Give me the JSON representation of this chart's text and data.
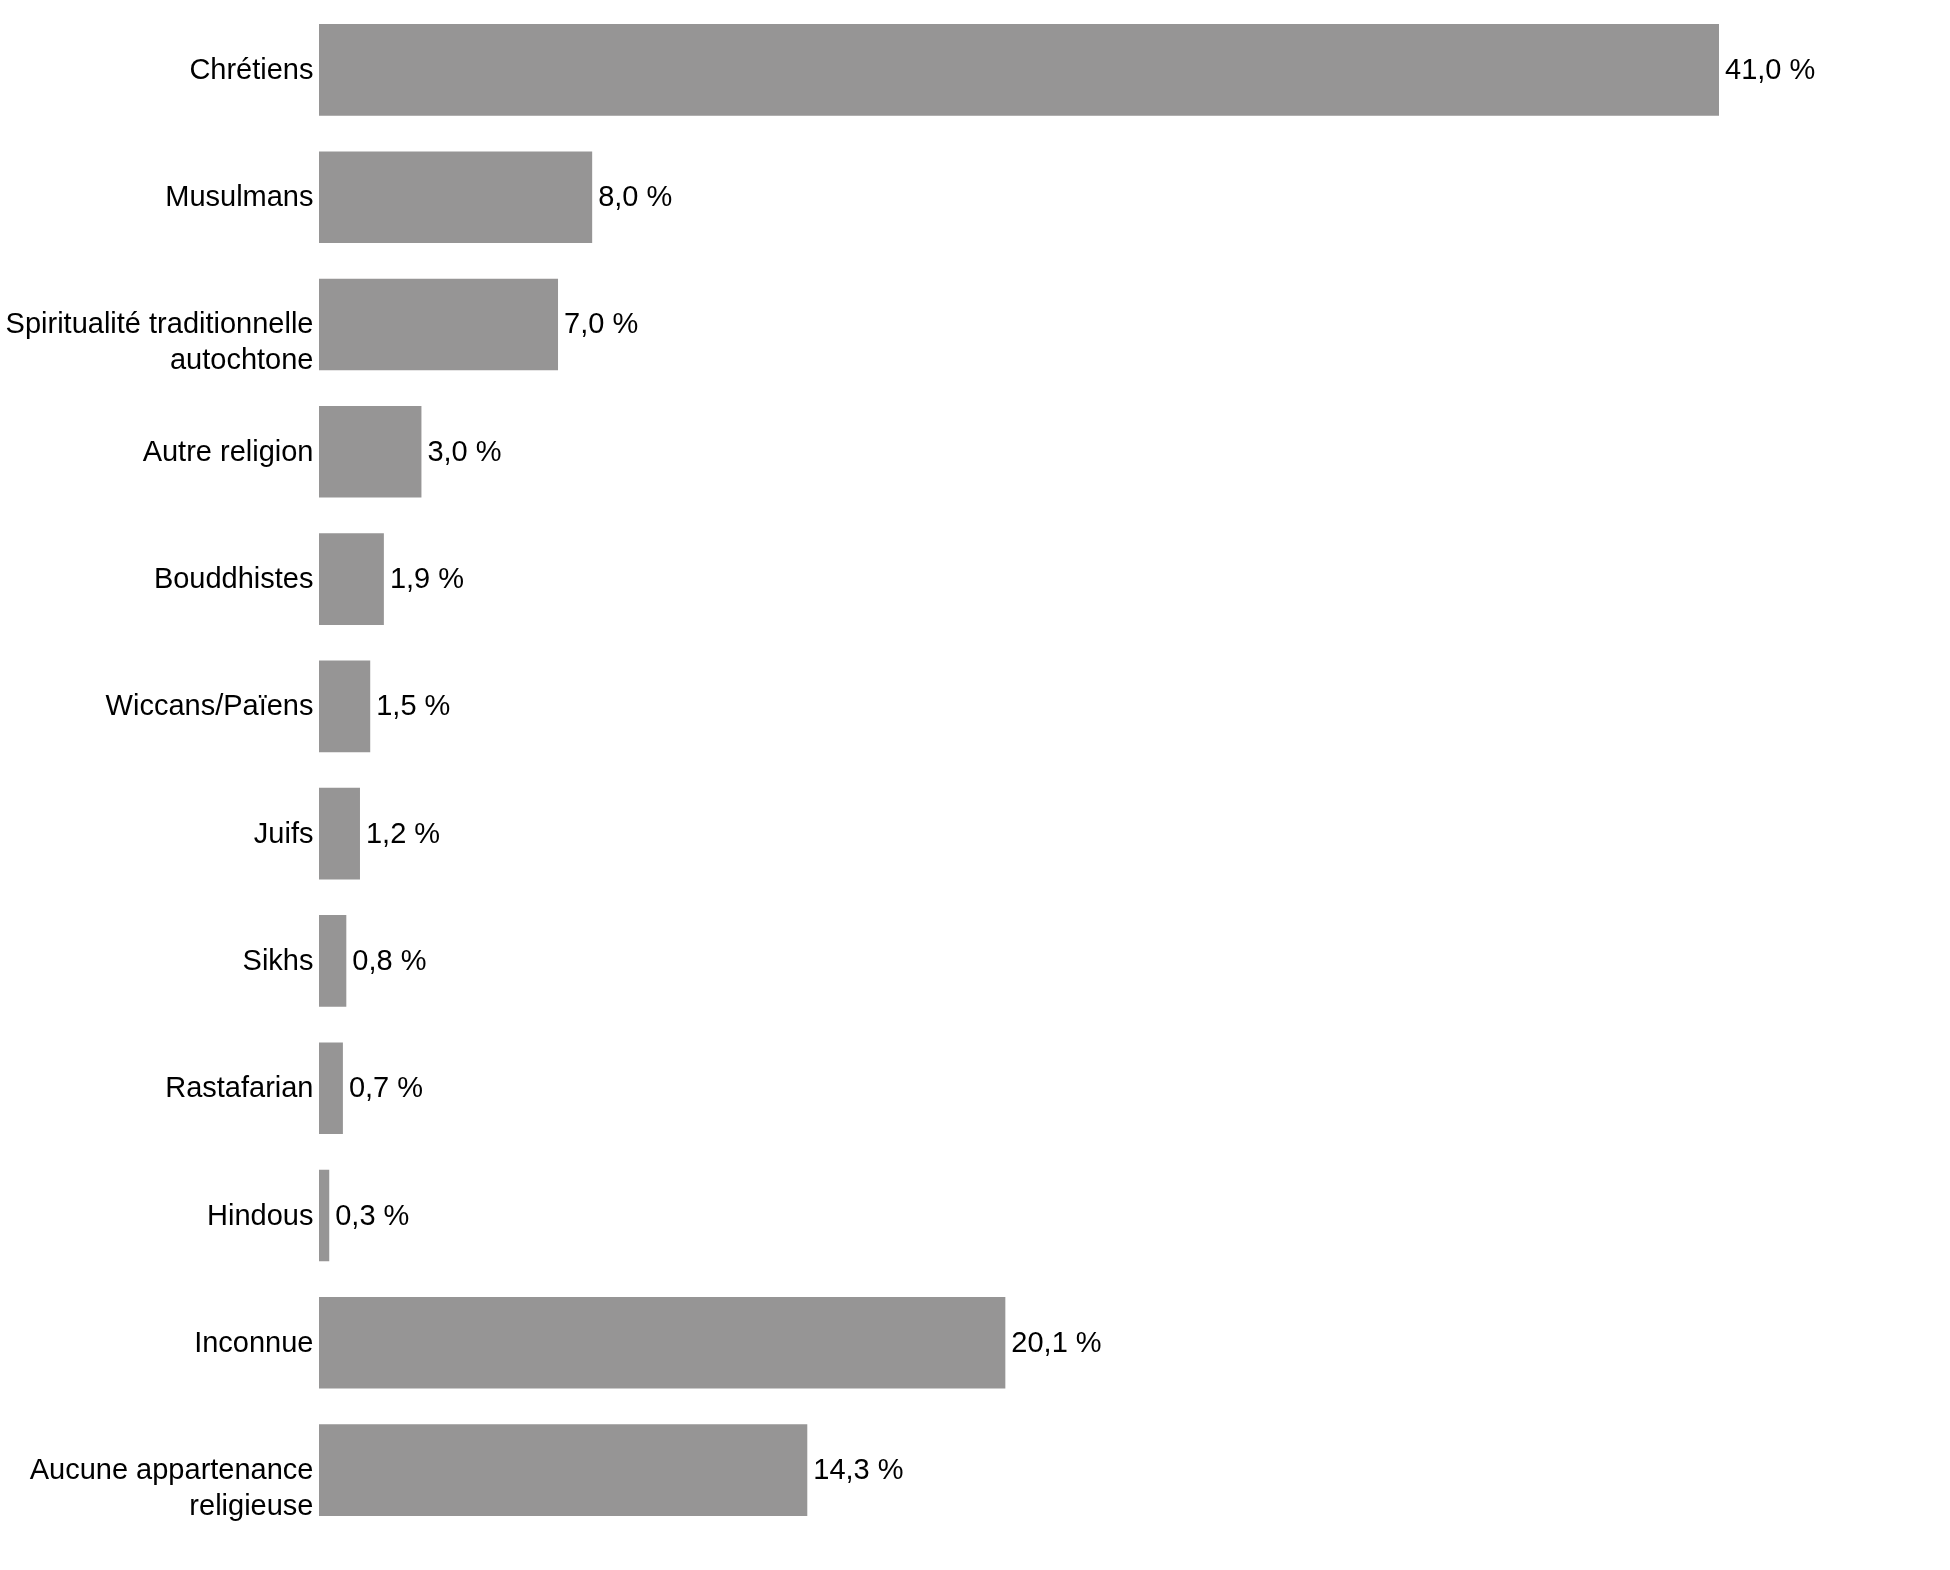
{
  "chart_data": {
    "type": "bar",
    "orientation": "horizontal",
    "categories": [
      "Chrétiens",
      "Musulmans",
      "Spiritualité traditionnelle autochtone",
      "Autre religion",
      "Bouddhistes",
      "Wiccans/Païens",
      "Juifs",
      "Sikhs",
      "Rastafarian",
      "Hindous",
      "Inconnue",
      "Aucune appartenance religieuse"
    ],
    "values": [
      41.0,
      8.0,
      7.0,
      3.0,
      1.9,
      1.5,
      1.2,
      0.8,
      0.7,
      0.3,
      20.1,
      14.3
    ],
    "value_labels": [
      "41,0 %",
      "8,0 %",
      "7,0 %",
      "3,0 %",
      "1,9 %",
      "1,5 %",
      "1,2 %",
      "0,8 %",
      "0,7 %",
      "0,3 %",
      "20,1 %",
      "14,3 %"
    ],
    "color": "#969595"
  }
}
